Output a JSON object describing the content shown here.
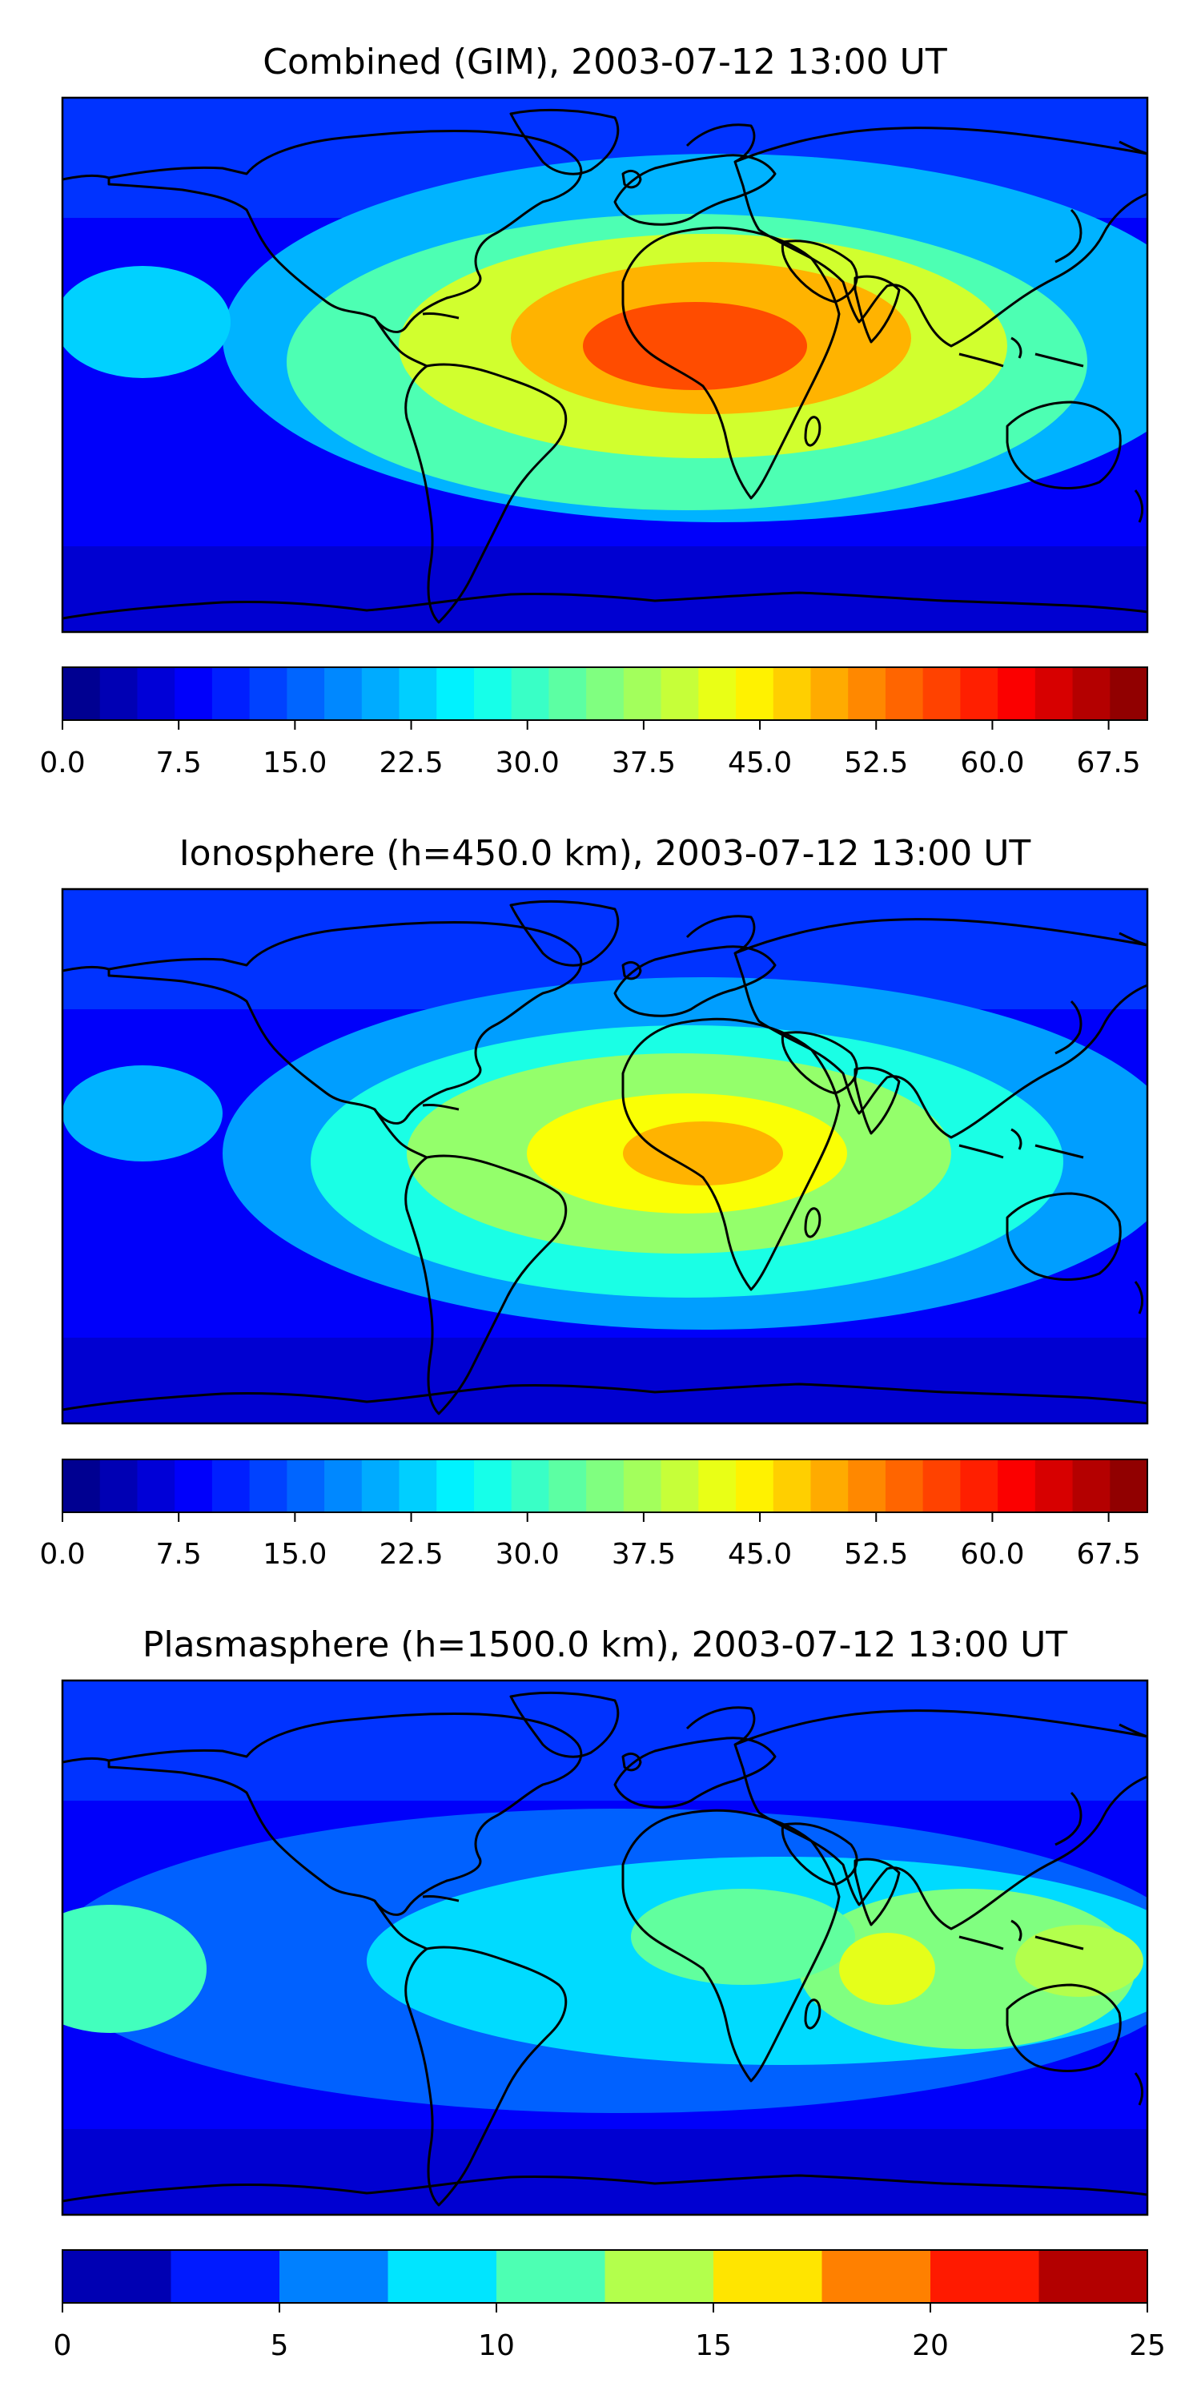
{
  "panels": [
    {
      "id": "combined",
      "title": "Combined (GIM), 2003-07-12 13:00 UT",
      "levels": 29,
      "tick_labels": [
        "0.0",
        "7.5",
        "15.0",
        "22.5",
        "30.0",
        "37.5",
        "45.0",
        "52.5",
        "60.0",
        "67.5"
      ],
      "tick_values": [
        0,
        7.5,
        15,
        22.5,
        30,
        37.5,
        45,
        52.5,
        60,
        67.5
      ],
      "vmin": 0,
      "vmax": 70
    },
    {
      "id": "ionosphere",
      "title": "Ionosphere  (h=450.0 km), 2003-07-12 13:00 UT",
      "levels": 29,
      "tick_labels": [
        "0.0",
        "7.5",
        "15.0",
        "22.5",
        "30.0",
        "37.5",
        "45.0",
        "52.5",
        "60.0",
        "67.5"
      ],
      "tick_values": [
        0,
        7.5,
        15,
        22.5,
        30,
        37.5,
        45,
        52.5,
        60,
        67.5
      ],
      "vmin": 0,
      "vmax": 70
    },
    {
      "id": "plasmasphere",
      "title": "Plasmasphere (h=1500.0 km), 2003-07-12 13:00 UT",
      "levels": 10,
      "tick_labels": [
        "0",
        "5",
        "10",
        "15",
        "20",
        "25"
      ],
      "tick_values": [
        0,
        5,
        10,
        15,
        20,
        25
      ],
      "vmin": 0,
      "vmax": 25
    }
  ],
  "colormap": "jet"
}
